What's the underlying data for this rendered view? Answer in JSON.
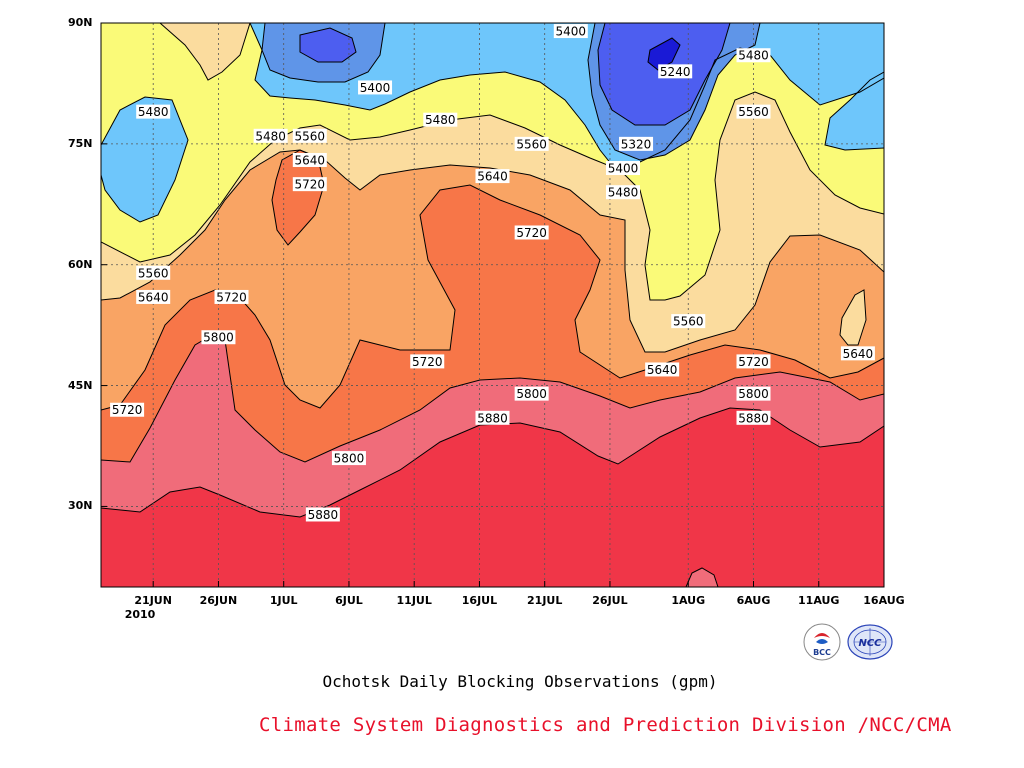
{
  "chart_data": {
    "type": "contour",
    "subtitle": "Ochotsk Daily Blocking Observations (gpm)",
    "credit": "Climate System Diagnostics and Prediction Division /NCC/CMA",
    "year_label": "2010",
    "x_ticks": [
      "21JUN",
      "26JUN",
      "1JUL",
      "6JUL",
      "11JUL",
      "16JUL",
      "21JUL",
      "26JUL",
      "1AUG",
      "6AUG",
      "11AUG",
      "16AUG"
    ],
    "y_ticks": [
      "30N",
      "45N",
      "60N",
      "75N",
      "90N"
    ],
    "xlim": [
      "2010-06-17",
      "2010-08-16"
    ],
    "ylim": [
      20,
      90
    ],
    "contour_levels": [
      5240,
      5320,
      5400,
      5480,
      5560,
      5640,
      5720,
      5800,
      5880
    ],
    "level_colors": {
      "below_5240": "#1a1ad6",
      "5240_5320": "#4d5ef0",
      "5320_5400": "#5f95e8",
      "5400_5480": "#6ec6fb",
      "5480_5560": "#fafa78",
      "5560_5640": "#fbdc9e",
      "5640_5720": "#f9a464",
      "5720_5800": "#f77648",
      "5800_5880": "#f06c7a",
      "above_5880": "#f03648"
    },
    "contour_labels": [
      {
        "text": "5400",
        "date": "2010-07-23",
        "lat": 89
      },
      {
        "text": "5480",
        "date": "2010-08-06",
        "lat": 86
      },
      {
        "text": "5240",
        "date": "2010-07-31",
        "lat": 84
      },
      {
        "text": "5400",
        "date": "2010-07-08",
        "lat": 82
      },
      {
        "text": "5480",
        "date": "2010-06-21",
        "lat": 79
      },
      {
        "text": "5560",
        "date": "2010-08-06",
        "lat": 79
      },
      {
        "text": "5480",
        "date": "2010-07-13",
        "lat": 78
      },
      {
        "text": "5480",
        "date": "2010-06-30",
        "lat": 76
      },
      {
        "text": "5560",
        "date": "2010-07-03",
        "lat": 76
      },
      {
        "text": "5560",
        "date": "2010-07-20",
        "lat": 75
      },
      {
        "text": "5320",
        "date": "2010-07-28",
        "lat": 75
      },
      {
        "text": "5640",
        "date": "2010-07-03",
        "lat": 73
      },
      {
        "text": "5400",
        "date": "2010-07-27",
        "lat": 72
      },
      {
        "text": "5640",
        "date": "2010-07-17",
        "lat": 71
      },
      {
        "text": "5720",
        "date": "2010-07-03",
        "lat": 70
      },
      {
        "text": "5480",
        "date": "2010-07-27",
        "lat": 69
      },
      {
        "text": "5720",
        "date": "2010-07-20",
        "lat": 64
      },
      {
        "text": "5560",
        "date": "2010-06-21",
        "lat": 59
      },
      {
        "text": "5640",
        "date": "2010-06-21",
        "lat": 56
      },
      {
        "text": "5720",
        "date": "2010-06-27",
        "lat": 56
      },
      {
        "text": "5560",
        "date": "2010-08-01",
        "lat": 53
      },
      {
        "text": "5800",
        "date": "2010-06-26",
        "lat": 51
      },
      {
        "text": "5640",
        "date": "2010-08-14",
        "lat": 49
      },
      {
        "text": "5720",
        "date": "2010-07-12",
        "lat": 48
      },
      {
        "text": "5720",
        "date": "2010-08-06",
        "lat": 48
      },
      {
        "text": "5640",
        "date": "2010-07-30",
        "lat": 47
      },
      {
        "text": "5800",
        "date": "2010-07-20",
        "lat": 44
      },
      {
        "text": "5800",
        "date": "2010-08-06",
        "lat": 44
      },
      {
        "text": "5720",
        "date": "2010-06-19",
        "lat": 42
      },
      {
        "text": "5880",
        "date": "2010-07-17",
        "lat": 41
      },
      {
        "text": "5880",
        "date": "2010-08-06",
        "lat": 41
      },
      {
        "text": "5800",
        "date": "2010-07-06",
        "lat": 36
      },
      {
        "text": "5880",
        "date": "2010-07-04",
        "lat": 29
      }
    ]
  },
  "logos": {
    "bcc": {
      "icon": "bcc-logo",
      "text": "BCC"
    },
    "ncc": {
      "icon": "ncc-logo",
      "text": "NCC"
    }
  }
}
